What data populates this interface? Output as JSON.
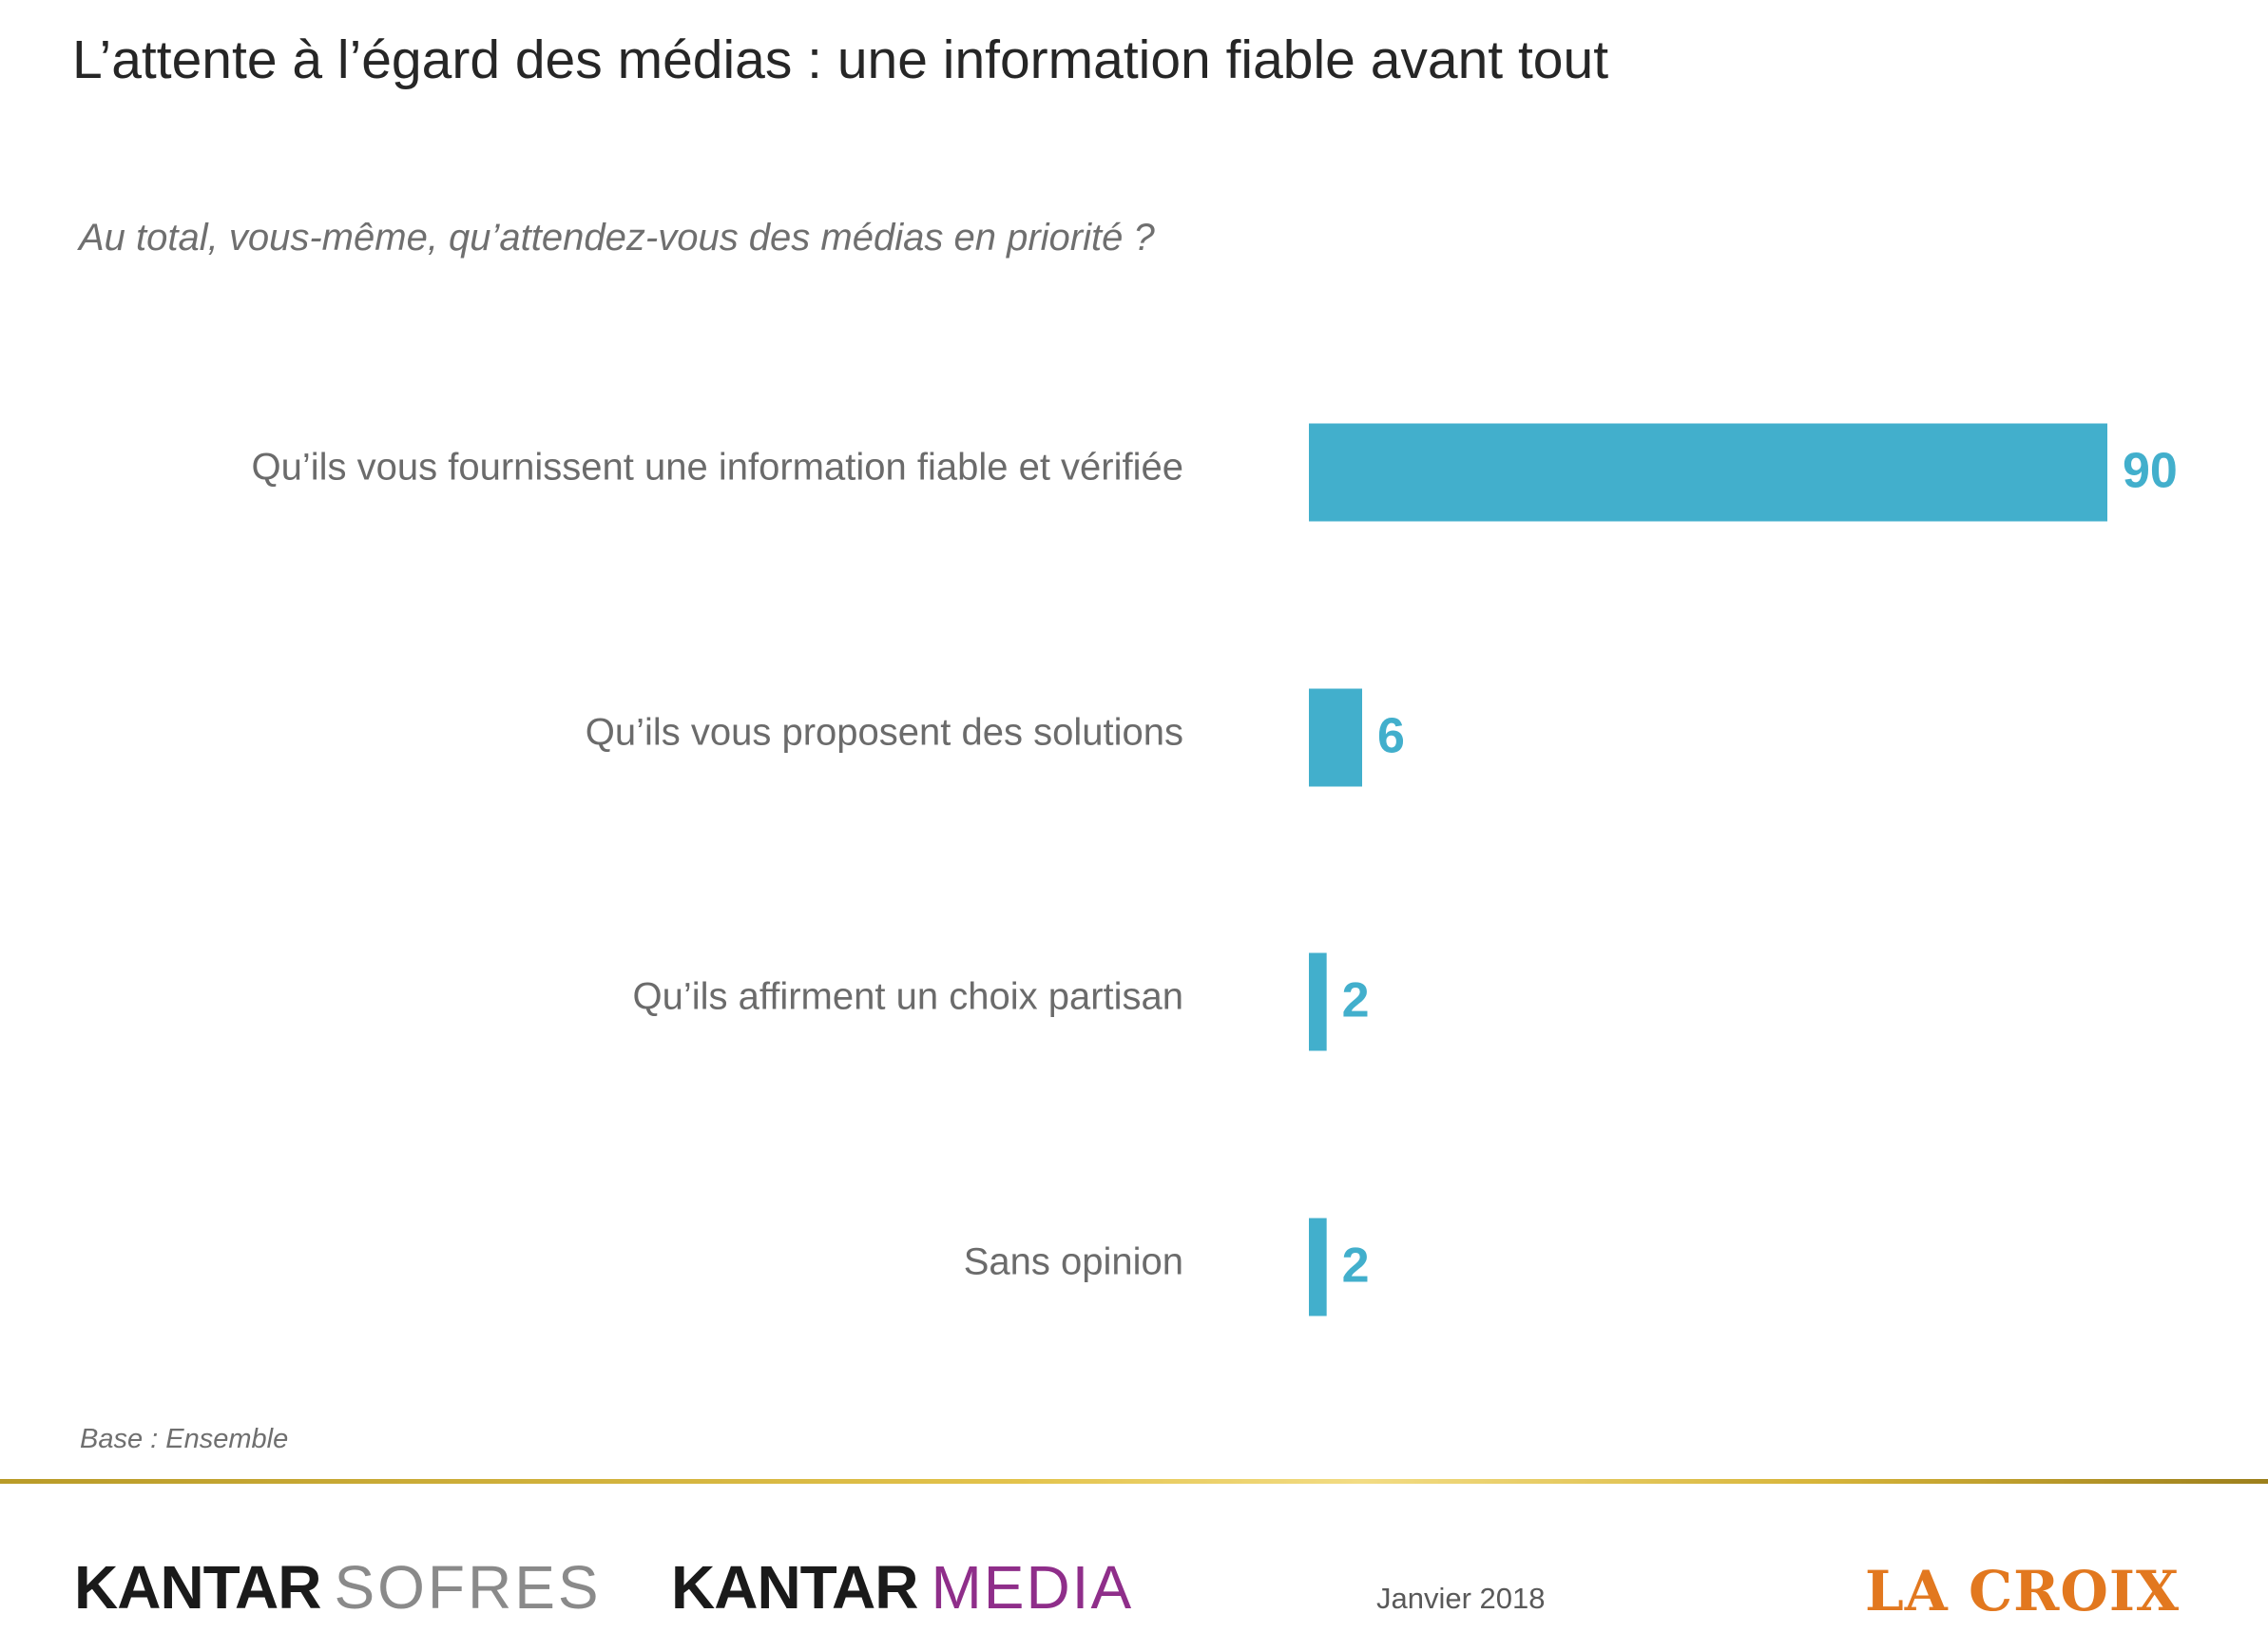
{
  "slide": {
    "title": "L’attente à l’égard des médias : une information fiable avant tout",
    "subtitle": "Au total, vous-même, qu’attendez-vous des médias en priorité ?",
    "base_note": "Base : Ensemble",
    "date": "Janvier 2018"
  },
  "logos": {
    "kantar_sofres": {
      "kantar": "KANTAR",
      "sofres": "SOFRES"
    },
    "kantar_media": {
      "kantar": "KANTAR",
      "media": "MEDIA"
    },
    "la_croix": "LA CROIX"
  },
  "colors": {
    "bar": "#42afcc",
    "value_label": "#42afcc",
    "category_label": "#6b6b6b",
    "title": "#262626",
    "gold_rule": "#d4b43c",
    "la_croix": "#e2781f",
    "media_purple": "#8f2e8a"
  },
  "chart_data": {
    "type": "bar",
    "orientation": "horizontal",
    "categories": [
      "Qu’ils vous fournissent une information fiable et vérifiée",
      "Qu’ils vous proposent des solutions",
      "Qu’ils affirment un choix partisan",
      "Sans opinion"
    ],
    "values": [
      90,
      6,
      2,
      2
    ],
    "xlim": [
      0,
      90
    ],
    "grid": false,
    "legend": "none"
  }
}
